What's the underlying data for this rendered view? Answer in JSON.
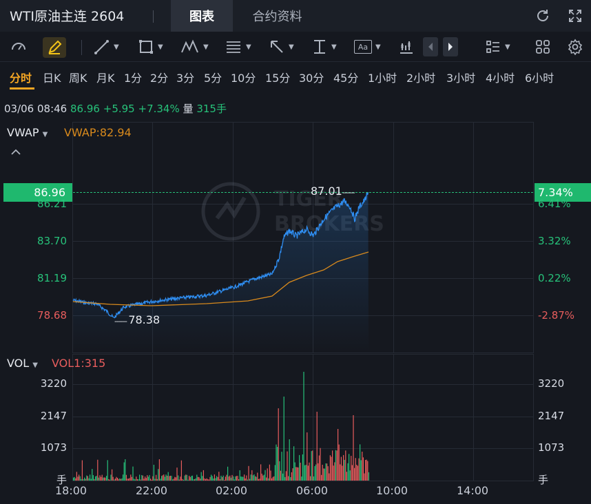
{
  "header": {
    "title": "WTI原油主连 2604",
    "tabs": [
      {
        "label": "图表",
        "active": true
      },
      {
        "label": "合约资料",
        "active": false
      }
    ],
    "icons": [
      "refresh-icon",
      "fullscreen-icon"
    ]
  },
  "toolbar": {
    "tools": [
      "gauge-icon",
      "pencil-icon",
      "trendline-icon",
      "rectangle-icon",
      "pattern-icon",
      "fibonacci-icon",
      "arrow-icon",
      "text-measure-icon",
      "annotation-icon",
      "indicator-icon",
      "prev-icon",
      "next-icon",
      "list-icon",
      "grid-icon",
      "settings-icon"
    ],
    "annotation_label": "Aa"
  },
  "periods": [
    "分时",
    "日K",
    "周K",
    "月K",
    "1分",
    "2分",
    "3分",
    "5分",
    "10分",
    "15分",
    "30分",
    "45分",
    "1小时",
    "2小时",
    "3小时",
    "4小时",
    "6小时"
  ],
  "info": {
    "datetime": "03/06 08:46",
    "price": "86.96",
    "change": "+5.95",
    "change_pct": "+7.34%",
    "vol_label": "量",
    "volume": "315手"
  },
  "price_panel": {
    "indicator": "VWAP",
    "indicator_value": "VWAP:82.94",
    "current_price": "86.96",
    "current_pct": "7.34%",
    "y_left": [
      "86.21",
      "83.70",
      "81.19",
      "78.68"
    ],
    "y_right": [
      "6.41%",
      "3.32%",
      "0.22%",
      "-2.87%"
    ],
    "high_label": "87.01",
    "low_label": "78.38",
    "watermark": "TIGER BROKERS",
    "colors": {
      "price_line": "#2f8ef2",
      "vwap_line": "#d98a1c",
      "up": "#27c27a",
      "down": "#e85d5d",
      "current_bg": "#1fb86e"
    }
  },
  "vol_panel": {
    "indicator": "VOL",
    "indicator_value": "VOL1:315",
    "y_left": [
      "3220",
      "2147",
      "1073",
      "手"
    ],
    "y_right": [
      "3220",
      "2147",
      "1073",
      "手"
    ]
  },
  "x_axis": [
    "18:00",
    "22:00",
    "02:00",
    "06:00",
    "10:00",
    "14:00"
  ]
}
